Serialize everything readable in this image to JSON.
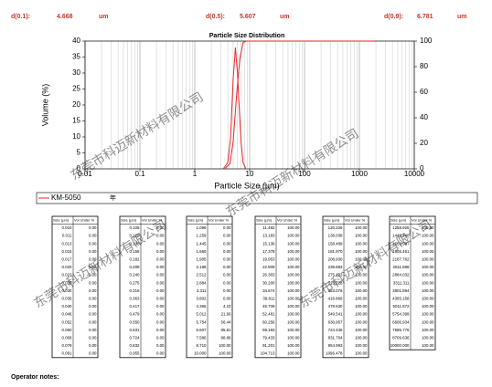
{
  "header": {
    "d10": {
      "label": "d(0.1):",
      "value": "4.668",
      "unit": "um"
    },
    "d50": {
      "label": "d(0.5):",
      "value": "5.607",
      "unit": "um"
    },
    "d90": {
      "label": "d(0.9):",
      "value": "6.781",
      "unit": "um"
    }
  },
  "watermark": "东莞市科迈新材料有限公司",
  "chart_data": {
    "type": "line",
    "title": "Particle Size Distribution",
    "x_label": "Particle Size (µm)",
    "y_label": "Volume (%)",
    "log_x": true,
    "grid": true,
    "xlim": [
      0.01,
      10000
    ],
    "xticks": [
      0.01,
      0.1,
      1,
      10,
      100,
      1000,
      10000
    ],
    "ylim": [
      0,
      40
    ],
    "yticks": [
      0,
      5,
      10,
      15,
      20,
      25,
      30,
      35,
      40
    ],
    "y2lim": [
      0,
      100
    ],
    "y2ticks": [
      0,
      20,
      40,
      60,
      80,
      100
    ],
    "series": [
      {
        "name": "KM-5050",
        "color": "#e8262a",
        "x": [
          3.3,
          4.0,
          4.5,
          5.0,
          5.5,
          6.0,
          6.5,
          7.0,
          7.6,
          8.5
        ],
        "values": [
          0,
          2,
          10,
          28,
          38,
          30,
          18,
          8,
          2,
          0
        ]
      },
      {
        "color": "#e8262a",
        "axis": "y2",
        "x": [
          3.5,
          4.365,
          5.012,
          5.754,
          6.607,
          7.586,
          8.71,
          1800
        ],
        "values": [
          0,
          4.1,
          21.66,
          56.44,
          85.81,
          98.86,
          100,
          100
        ]
      }
    ],
    "legend_note": "年"
  },
  "tables": [
    {
      "header": [
        "Size (µm)",
        "Vol Under %"
      ],
      "rows": [
        [
          "0.010",
          "0.00"
        ],
        [
          "0.011",
          "0.00"
        ],
        [
          "0.013",
          "0.00"
        ],
        [
          "0.015",
          "0.00"
        ],
        [
          "0.017",
          "0.00"
        ],
        [
          "0.020",
          "0.00"
        ],
        [
          "0.023",
          "0.00"
        ],
        [
          "0.026",
          "0.00"
        ],
        [
          "0.030",
          "0.00"
        ],
        [
          "0.035",
          "0.00"
        ],
        [
          "0.040",
          "0.00"
        ],
        [
          "0.046",
          "0.00"
        ],
        [
          "0.052",
          "0.00"
        ],
        [
          "0.060",
          "0.00"
        ],
        [
          "0.069",
          "0.00"
        ],
        [
          "0.079",
          "0.00"
        ],
        [
          "0.091",
          "0.00"
        ]
      ]
    },
    {
      "header": [
        "Size (µm)",
        "Vol Under %"
      ],
      "rows": [
        [
          "0.105",
          "0.00"
        ],
        [
          "0.120",
          "0.00"
        ],
        [
          "0.138",
          "0.00"
        ],
        [
          "0.158",
          "0.00"
        ],
        [
          "0.182",
          "0.00"
        ],
        [
          "0.209",
          "0.00"
        ],
        [
          "0.240",
          "0.00"
        ],
        [
          "0.275",
          "0.00"
        ],
        [
          "0.316",
          "0.00"
        ],
        [
          "0.363",
          "0.00"
        ],
        [
          "0.417",
          "0.00"
        ],
        [
          "0.479",
          "0.00"
        ],
        [
          "0.550",
          "0.00"
        ],
        [
          "0.631",
          "0.00"
        ],
        [
          "0.724",
          "0.00"
        ],
        [
          "0.832",
          "0.00"
        ],
        [
          "0.955",
          "0.00"
        ]
      ]
    },
    {
      "header": [
        "Size (µm)",
        "Vol Under %"
      ],
      "rows": [
        [
          "1.096",
          "0.00"
        ],
        [
          "1.259",
          "0.00"
        ],
        [
          "1.445",
          "0.00"
        ],
        [
          "1.660",
          "0.00"
        ],
        [
          "1.905",
          "0.00"
        ],
        [
          "2.188",
          "0.00"
        ],
        [
          "2.512",
          "0.00"
        ],
        [
          "2.884",
          "0.00"
        ],
        [
          "3.311",
          "0.00"
        ],
        [
          "3.802",
          "0.00"
        ],
        [
          "4.365",
          "4.10"
        ],
        [
          "5.012",
          "21.66"
        ],
        [
          "5.754",
          "56.44"
        ],
        [
          "6.607",
          "85.81"
        ],
        [
          "7.586",
          "98.86"
        ],
        [
          "8.710",
          "100.00"
        ],
        [
          "10.000",
          "100.00"
        ]
      ]
    },
    {
      "header": [
        "Size (µm)",
        "Vol Under %"
      ],
      "rows": [
        [
          "11.482",
          "100.00"
        ],
        [
          "13.183",
          "100.00"
        ],
        [
          "15.136",
          "100.00"
        ],
        [
          "17.378",
          "100.00"
        ],
        [
          "19.953",
          "100.00"
        ],
        [
          "22.909",
          "100.00"
        ],
        [
          "26.303",
          "100.00"
        ],
        [
          "30.200",
          "100.00"
        ],
        [
          "34.674",
          "100.00"
        ],
        [
          "39.811",
          "100.00"
        ],
        [
          "45.709",
          "100.00"
        ],
        [
          "52.481",
          "100.00"
        ],
        [
          "60.256",
          "100.00"
        ],
        [
          "69.183",
          "100.00"
        ],
        [
          "79.433",
          "100.00"
        ],
        [
          "91.201",
          "100.00"
        ],
        [
          "104.713",
          "100.00"
        ]
      ]
    },
    {
      "header": [
        "Size (µm)",
        "Vol Under %"
      ],
      "rows": [
        [
          "120.226",
          "100.00"
        ],
        [
          "138.038",
          "100.00"
        ],
        [
          "158.489",
          "100.00"
        ],
        [
          "181.970",
          "100.00"
        ],
        [
          "208.930",
          "100.00"
        ],
        [
          "239.883",
          "100.00"
        ],
        [
          "275.423",
          "100.00"
        ],
        [
          "316.228",
          "100.00"
        ],
        [
          "363.078",
          "100.00"
        ],
        [
          "416.869",
          "100.00"
        ],
        [
          "478.630",
          "100.00"
        ],
        [
          "549.541",
          "100.00"
        ],
        [
          "630.957",
          "100.00"
        ],
        [
          "724.436",
          "100.00"
        ],
        [
          "831.764",
          "100.00"
        ],
        [
          "954.993",
          "100.00"
        ],
        [
          "1096.478",
          "100.00"
        ]
      ]
    },
    {
      "header": [
        "Size (µm)",
        "Vol Under %"
      ],
      "rows": [
        [
          "1258.925",
          "100.00"
        ],
        [
          "1445.440",
          "100.00"
        ],
        [
          "1659.587",
          "100.00"
        ],
        [
          "1905.461",
          "100.00"
        ],
        [
          "2187.762",
          "100.00"
        ],
        [
          "2511.886",
          "100.00"
        ],
        [
          "2884.032",
          "100.00"
        ],
        [
          "3311.311",
          "100.00"
        ],
        [
          "3801.894",
          "100.00"
        ],
        [
          "4365.158",
          "100.00"
        ],
        [
          "5011.872",
          "100.00"
        ],
        [
          "5754.399",
          "100.00"
        ],
        [
          "6606.934",
          "100.00"
        ],
        [
          "7585.776",
          "100.00"
        ],
        [
          "8709.636",
          "100.00"
        ],
        [
          "10000.000",
          "100.00"
        ]
      ]
    }
  ],
  "notes_label": "Operator notes:"
}
